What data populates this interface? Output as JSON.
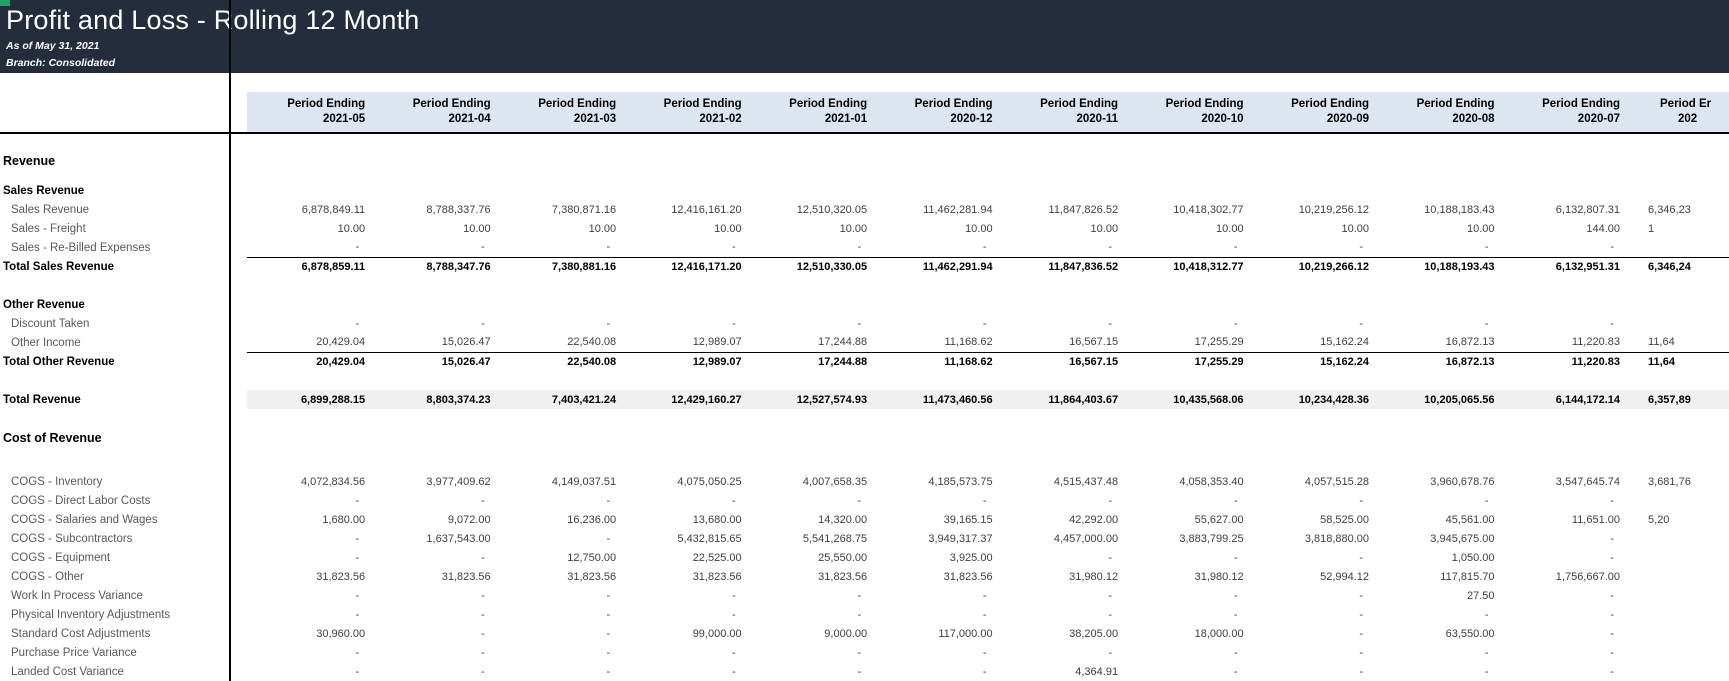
{
  "banner": {
    "title": "Profit and Loss - Rolling 12 Month",
    "as_of": "As of May 31, 2021",
    "branch": "Branch: Consolidated"
  },
  "colors": {
    "banner_bg": "#232d3b",
    "header_band": "#dce6f1",
    "shaded_row": "#f0f0f0",
    "accent_green": "#21a366"
  },
  "table": {
    "column_header": "Period Ending",
    "columns": [
      "2021-05",
      "2021-04",
      "2021-03",
      "2021-02",
      "2021-01",
      "2020-12",
      "2020-11",
      "2020-10",
      "2020-09",
      "2020-08",
      "2020-07"
    ],
    "cut_column": {
      "header": "Period Er",
      "date": "202"
    },
    "rows": [
      {
        "type": "section",
        "label": "Revenue",
        "values": [
          "",
          "",
          "",
          "",
          "",
          "",
          "",
          "",
          "",
          "",
          ""
        ],
        "cut": ""
      },
      {
        "type": "spacer",
        "h": 11
      },
      {
        "type": "sub",
        "label": "Sales Revenue",
        "values": [
          "",
          "",
          "",
          "",
          "",
          "",
          "",
          "",
          "",
          "",
          ""
        ],
        "cut": ""
      },
      {
        "type": "item",
        "label": "Sales Revenue",
        "values": [
          "6,878,849.11",
          "8,788,337.76",
          "7,380,871.16",
          "12,416,161.20",
          "12,510,320.05",
          "11,462,281.94",
          "11,847,826.52",
          "10,418,302.77",
          "10,219,256.12",
          "10,188,183.43",
          "6,132,807.31"
        ],
        "cut": "6,346,23"
      },
      {
        "type": "item",
        "label": "Sales - Freight",
        "values": [
          "10.00",
          "10.00",
          "10.00",
          "10.00",
          "10.00",
          "10.00",
          "10.00",
          "10.00",
          "10.00",
          "10.00",
          "144.00"
        ],
        "cut": "1"
      },
      {
        "type": "item",
        "label": "Sales - Re-Billed Expenses",
        "values": [
          "-",
          "-",
          "-",
          "-",
          "-",
          "-",
          "-",
          "-",
          "-",
          "-",
          "-"
        ],
        "cut": ""
      },
      {
        "type": "total",
        "label": "Total Sales Revenue",
        "values": [
          "6,878,859.11",
          "8,788,347.76",
          "7,380,881.16",
          "12,416,171.20",
          "12,510,330.05",
          "11,462,291.94",
          "11,847,836.52",
          "10,418,312.77",
          "10,219,266.12",
          "10,188,193.43",
          "6,132,951.31"
        ],
        "cut": "6,346,24"
      },
      {
        "type": "spacer",
        "h": 19
      },
      {
        "type": "sub",
        "label": "Other Revenue",
        "values": [
          "",
          "",
          "",
          "",
          "",
          "",
          "",
          "",
          "",
          "",
          ""
        ],
        "cut": ""
      },
      {
        "type": "item",
        "label": "Discount Taken",
        "values": [
          "-",
          "-",
          "-",
          "-",
          "-",
          "-",
          "-",
          "-",
          "-",
          "-",
          "-"
        ],
        "cut": ""
      },
      {
        "type": "item",
        "label": "Other Income",
        "values": [
          "20,429.04",
          "15,026.47",
          "22,540.08",
          "12,989.07",
          "17,244.88",
          "11,168.62",
          "16,567.15",
          "17,255.29",
          "15,162.24",
          "16,872.13",
          "11,220.83"
        ],
        "cut": "11,64"
      },
      {
        "type": "total",
        "label": "Total Other Revenue",
        "values": [
          "20,429.04",
          "15,026.47",
          "22,540.08",
          "12,989.07",
          "17,244.88",
          "11,168.62",
          "16,567.15",
          "17,255.29",
          "15,162.24",
          "16,872.13",
          "11,220.83"
        ],
        "cut": "11,64"
      },
      {
        "type": "spacer",
        "h": 19
      },
      {
        "type": "total_shaded",
        "label": "Total Revenue",
        "values": [
          "6,899,288.15",
          "8,803,374.23",
          "7,403,421.24",
          "12,429,160.27",
          "12,527,574.93",
          "11,473,460.56",
          "11,864,403.67",
          "10,435,568.06",
          "10,234,428.36",
          "10,205,065.56",
          "6,144,172.14"
        ],
        "cut": "6,357,89"
      },
      {
        "type": "spacer",
        "h": 19
      },
      {
        "type": "section",
        "label": "Cost of Revenue",
        "values": [
          "",
          "",
          "",
          "",
          "",
          "",
          "",
          "",
          "",
          "",
          ""
        ],
        "cut": ""
      },
      {
        "type": "spacer",
        "h": 25
      },
      {
        "type": "item",
        "label": "COGS - Inventory",
        "values": [
          "4,072,834.56",
          "3,977,409.62",
          "4,149,037.51",
          "4,075,050.25",
          "4,007,658.35",
          "4,185,573.75",
          "4,515,437.48",
          "4,058,353.40",
          "4,057,515.28",
          "3,960,678.76",
          "3,547,645.74"
        ],
        "cut": "3,681,76"
      },
      {
        "type": "item",
        "label": "COGS - Direct Labor Costs",
        "values": [
          "-",
          "-",
          "-",
          "-",
          "-",
          "-",
          "-",
          "-",
          "-",
          "-",
          "-"
        ],
        "cut": ""
      },
      {
        "type": "item",
        "label": "COGS - Salaries and Wages",
        "values": [
          "1,680.00",
          "9,072.00",
          "16,236.00",
          "13,680.00",
          "14,320.00",
          "39,165.15",
          "42,292.00",
          "55,627.00",
          "58,525.00",
          "45,561.00",
          "11,651.00"
        ],
        "cut": "5,20"
      },
      {
        "type": "item",
        "label": "COGS - Subcontractors",
        "values": [
          "-",
          "1,637,543.00",
          "-",
          "5,432,815.65",
          "5,541,268.75",
          "3,949,317.37",
          "4,457,000.00",
          "3,883,799.25",
          "3,818,880.00",
          "3,945,675.00",
          "-"
        ],
        "cut": ""
      },
      {
        "type": "item",
        "label": "COGS - Equipment",
        "values": [
          "-",
          "-",
          "12,750.00",
          "22,525.00",
          "25,550.00",
          "3,925.00",
          "-",
          "-",
          "-",
          "1,050.00",
          "-"
        ],
        "cut": ""
      },
      {
        "type": "item",
        "label": "COGS - Other",
        "values": [
          "31,823.56",
          "31,823.56",
          "31,823.56",
          "31,823.56",
          "31,823.56",
          "31,823.56",
          "31,980.12",
          "31,980.12",
          "52,994.12",
          "117,815.70",
          "1,756,667.00"
        ],
        "cut": ""
      },
      {
        "type": "item",
        "label": "Work In Process Variance",
        "values": [
          "-",
          "-",
          "-",
          "-",
          "-",
          "-",
          "-",
          "-",
          "-",
          "27.50",
          "-"
        ],
        "cut": ""
      },
      {
        "type": "item",
        "label": "Physical Inventory Adjustments",
        "values": [
          "-",
          "-",
          "-",
          "-",
          "-",
          "-",
          "-",
          "-",
          "-",
          "-",
          "-"
        ],
        "cut": ""
      },
      {
        "type": "item",
        "label": "Standard Cost Adjustments",
        "values": [
          "30,960.00",
          "-",
          "-",
          "99,000.00",
          "9,000.00",
          "117,000.00",
          "38,205.00",
          "18,000.00",
          "-",
          "63,550.00",
          "-"
        ],
        "cut": ""
      },
      {
        "type": "item",
        "label": "Purchase Price Variance",
        "values": [
          "-",
          "-",
          "-",
          "-",
          "-",
          "-",
          "-",
          "-",
          "-",
          "-",
          "-"
        ],
        "cut": ""
      },
      {
        "type": "item",
        "label": "Landed Cost Variance",
        "values": [
          "-",
          "-",
          "-",
          "-",
          "-",
          "-",
          "4,364.91",
          "-",
          "-",
          "-",
          "-"
        ],
        "cut": ""
      }
    ]
  }
}
